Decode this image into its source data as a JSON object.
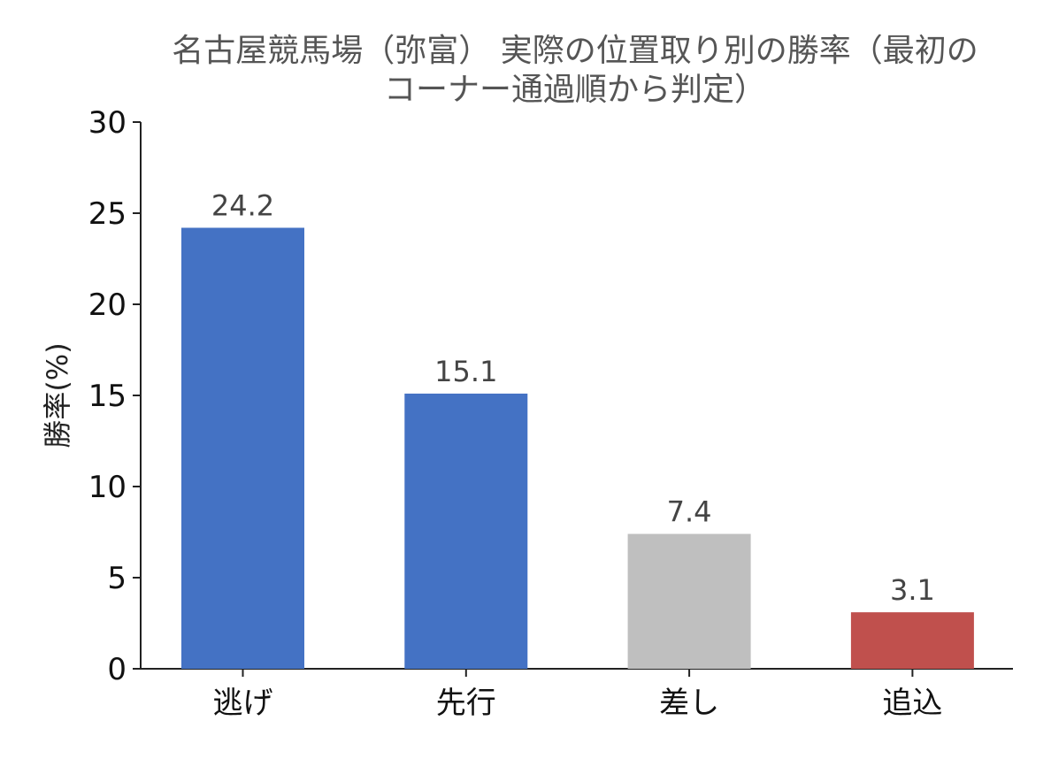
{
  "chart_data": {
    "type": "bar",
    "title": "名古屋競馬場（弥富） 実際の位置取り別の勝率（最初の\nコーナー通過順から判定）",
    "xlabel": "",
    "ylabel": "勝率(%)",
    "categories": [
      "逃げ",
      "先行",
      "差し",
      "追込"
    ],
    "values": [
      24.2,
      15.1,
      7.4,
      3.1
    ],
    "value_labels": [
      "24.2",
      "15.1",
      "7.4",
      "3.1"
    ],
    "bar_colors": [
      "#4472C4",
      "#4472C4",
      "#BFBFBF",
      "#C0504D"
    ],
    "ylim": [
      0,
      30
    ],
    "yticks": [
      0,
      5,
      10,
      15,
      20,
      25,
      30
    ],
    "grid": false,
    "legend": "none"
  }
}
